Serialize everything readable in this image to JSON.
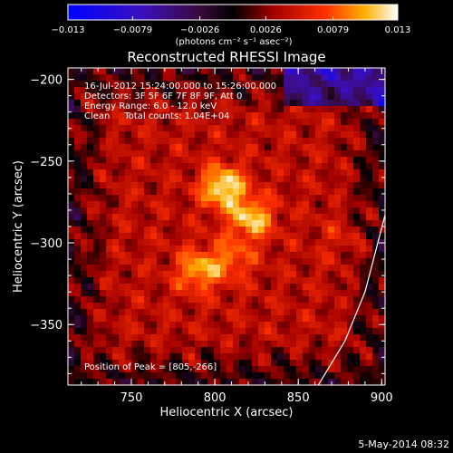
{
  "chart_data": {
    "type": "heatmap",
    "title": "Reconstructed RHESSI Image",
    "xlabel": "Heliocentric X (arcsec)",
    "ylabel": "Heliocentric Y (arcsec)",
    "xlim": [
      712,
      902
    ],
    "ylim": [
      -387,
      -193
    ],
    "x_ticks": [
      750,
      800,
      850,
      900
    ],
    "y_ticks": [
      -200,
      -250,
      -300,
      -350
    ],
    "colorbar": {
      "min": -0.013,
      "max": 0.013,
      "tick_values": [
        -0.013,
        -0.0079,
        -0.0026,
        0.0026,
        0.0079,
        0.013
      ],
      "tick_labels": [
        "−0.013",
        "−0.0079",
        "−0.0026",
        "0.0026",
        "0.0079",
        "0.013"
      ],
      "unit_label": "(photons cm⁻² s⁻¹ asec⁻²)"
    },
    "annotations": [
      "16-Jul-2012 15:24:00.000 to 15:26:00.000",
      "Detectors: 3F 5F 6F 7F 8F 9F, Att 0",
      "Energy Range: 6.0 - 12.0 keV",
      "Clean     Total counts: 1.04E+04"
    ],
    "peak_label": "Position of Peak = [805,-266]",
    "sources": [
      {
        "x": 805,
        "y": -266,
        "intensity": 0.013
      },
      {
        "x": 822,
        "y": -285,
        "intensity": 0.0115
      },
      {
        "x": 790,
        "y": -317,
        "intensity": 0.0105
      },
      {
        "x": 810,
        "y": -310,
        "intensity": 0.0085
      },
      {
        "x": 878,
        "y": -298,
        "intensity": 0.006
      }
    ],
    "limb_curve": [
      [
        862,
        -387
      ],
      [
        878,
        -360
      ],
      [
        890,
        -330
      ],
      [
        902,
        -283
      ]
    ]
  },
  "footer": {
    "date": "5-May-2014 08:32"
  }
}
